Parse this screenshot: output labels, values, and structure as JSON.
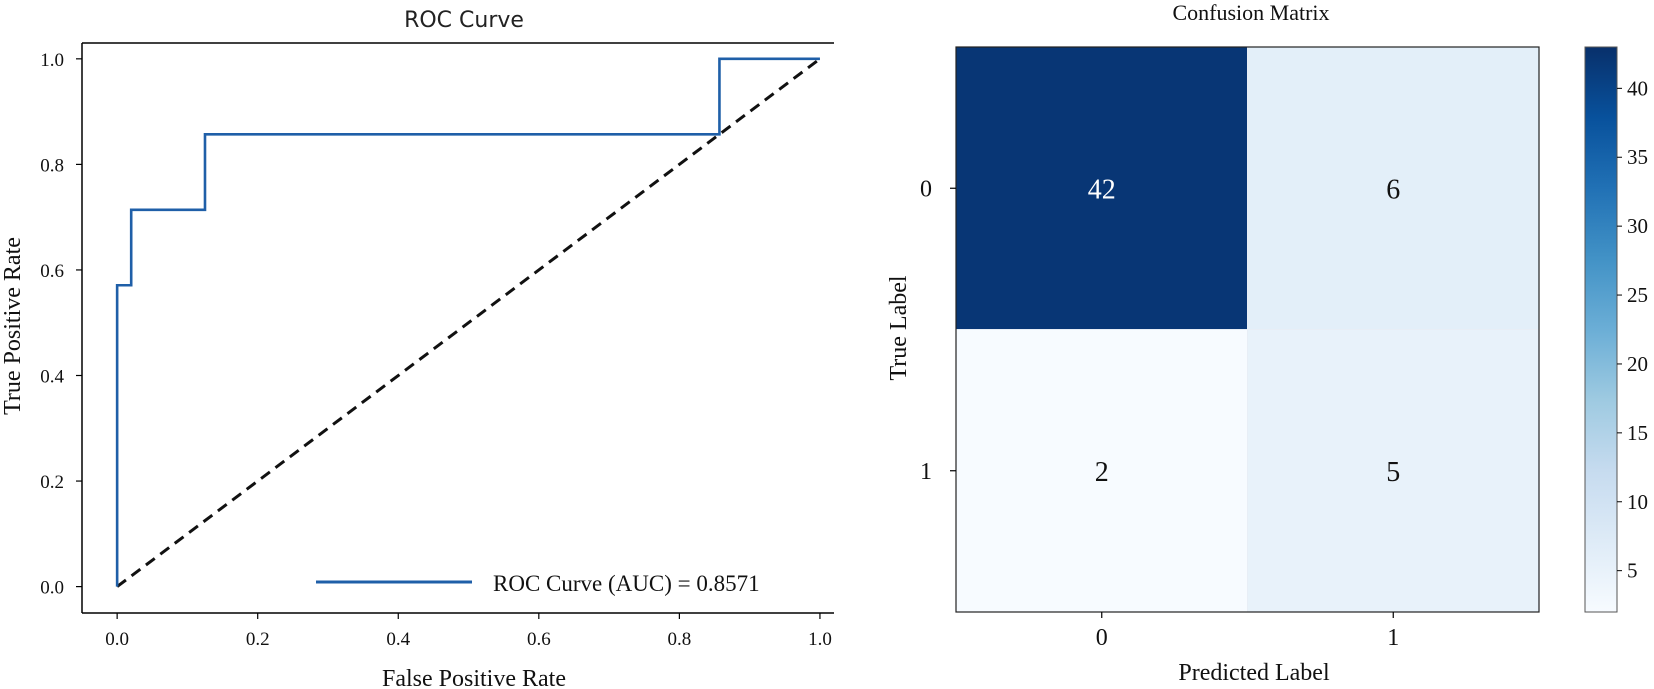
{
  "chart_data": [
    {
      "type": "line",
      "title": "ROC Curve",
      "xlabel": "False Positive Rate",
      "ylabel": "True Positive Rate",
      "xlim": [
        -0.05,
        1.02
      ],
      "ylim": [
        -0.05,
        1.03
      ],
      "xticks": [
        "0.0",
        "0.2",
        "0.4",
        "0.6",
        "0.8",
        "1.0"
      ],
      "yticks": [
        "0.0",
        "0.2",
        "0.4",
        "0.6",
        "0.8",
        "1.0"
      ],
      "series": [
        {
          "name": "ROC Curve (AUC) = 0.8571",
          "color": "#1f5fa8",
          "x": [
            0.0,
            0.0,
            0.02,
            0.02,
            0.125,
            0.125,
            0.857,
            0.857,
            1.0
          ],
          "y": [
            0.0,
            0.571,
            0.571,
            0.714,
            0.714,
            0.857,
            0.857,
            1.0,
            1.0
          ]
        },
        {
          "color": "#111111",
          "style": "dashed",
          "x": [
            0.0,
            1.0
          ],
          "y": [
            0.0,
            1.0
          ]
        }
      ],
      "legend": {
        "position": "lower right",
        "label": "ROC Curve (AUC) = 0.8571"
      },
      "grid": false
    },
    {
      "type": "heatmap",
      "title": "Confusion Matrix",
      "xlabel": "Predicted Label",
      "ylabel": "True Label",
      "xticks": [
        "0",
        "1"
      ],
      "yticks": [
        "0",
        "1"
      ],
      "matrix": [
        [
          42,
          6
        ],
        [
          2,
          5
        ]
      ],
      "colormap": "Blues",
      "colorbar": {
        "ticks": [
          "5",
          "10",
          "15",
          "20",
          "25",
          "30",
          "35",
          "40"
        ],
        "min": 2,
        "max": 43
      }
    }
  ]
}
